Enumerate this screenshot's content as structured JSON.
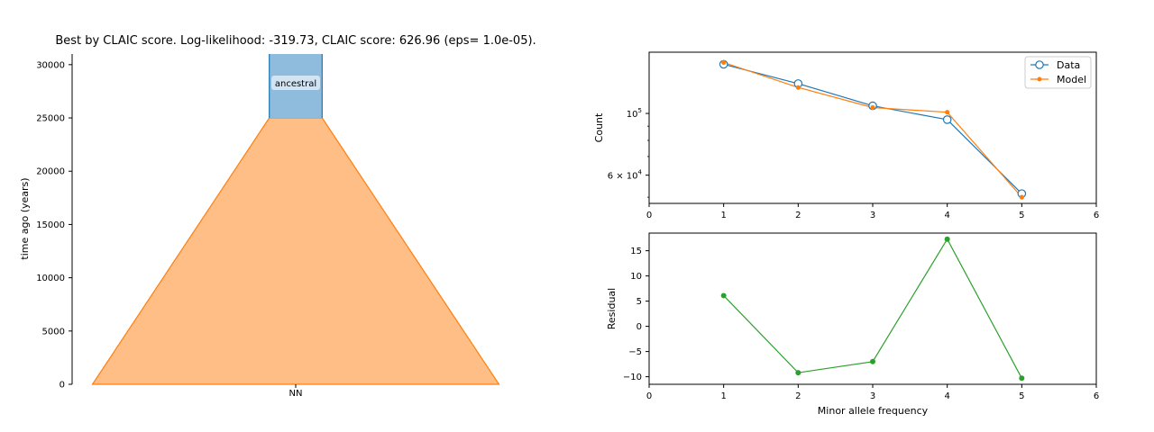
{
  "figure_title": "Best by CLAIC score. Log-likelihood: -319.73, CLAIC score: 626.96 (eps= 1.0e-05).",
  "colors": {
    "data": "#1f77b4",
    "model": "#ff7f0e",
    "residual": "#2ca02c",
    "ancestral_fill": "#8fbbdc",
    "ancestral_edge": "#1f77b4",
    "nn_fill": "#ffbe86",
    "nn_edge": "#ff7f0e"
  },
  "chart_data": [
    {
      "type": "area",
      "subtype": "demography",
      "title": "Best by CLAIC score. Log-likelihood: -319.73, CLAIC score: 626.96 (eps= 1.0e-05).",
      "ylabel": "time ago (years)",
      "xlabel": "",
      "ylim": [
        0,
        31000
      ],
      "yticks": [
        0,
        5000,
        10000,
        15000,
        20000,
        25000,
        30000
      ],
      "ytick_labels": [
        "0",
        "5000",
        "10000",
        "15000",
        "20000",
        "25000",
        "30000"
      ],
      "xtick_labels": [
        "NN"
      ],
      "demes": [
        {
          "name": "ancestral",
          "start_time": 31000,
          "end_time": 25000,
          "relative_width": 0.13
        },
        {
          "name": "NN",
          "start_time": 25000,
          "end_time": 0,
          "relative_width_start": 0.13,
          "relative_width_end": 1.0
        }
      ],
      "grid": false
    },
    {
      "type": "line",
      "xlabel": "",
      "ylabel": "Count",
      "yscale": "log",
      "xlim": [
        0,
        6
      ],
      "ylim": [
        47500,
        166000
      ],
      "xticks": [
        0,
        1,
        2,
        3,
        4,
        5,
        6
      ],
      "ytick_labels": [
        "10^5",
        "6 × 10^4"
      ],
      "legend": "top-right",
      "grid": false,
      "x": [
        1,
        2,
        3,
        4,
        5
      ],
      "series": [
        {
          "name": "Data",
          "values": [
            150200,
            128000,
            106500,
            95000,
            51500
          ],
          "marker": "open-circle"
        },
        {
          "name": "Model",
          "values": [
            152500,
            124000,
            105000,
            101000,
            50000
          ],
          "marker": "dot"
        }
      ]
    },
    {
      "type": "line",
      "xlabel": "Minor allele frequency",
      "ylabel": "Residual",
      "xlim": [
        0,
        6
      ],
      "ylim": [
        -11.5,
        18.5
      ],
      "xticks": [
        0,
        1,
        2,
        3,
        4,
        5,
        6
      ],
      "yticks": [
        -10,
        -5,
        0,
        5,
        10,
        15
      ],
      "ytick_labels": [
        "−10",
        "−5",
        "0",
        "5",
        "10",
        "15"
      ],
      "grid": false,
      "x": [
        1,
        2,
        3,
        4,
        5
      ],
      "series": [
        {
          "values": [
            6.1,
            -9.2,
            -7.0,
            17.3,
            -10.3
          ]
        }
      ]
    }
  ]
}
